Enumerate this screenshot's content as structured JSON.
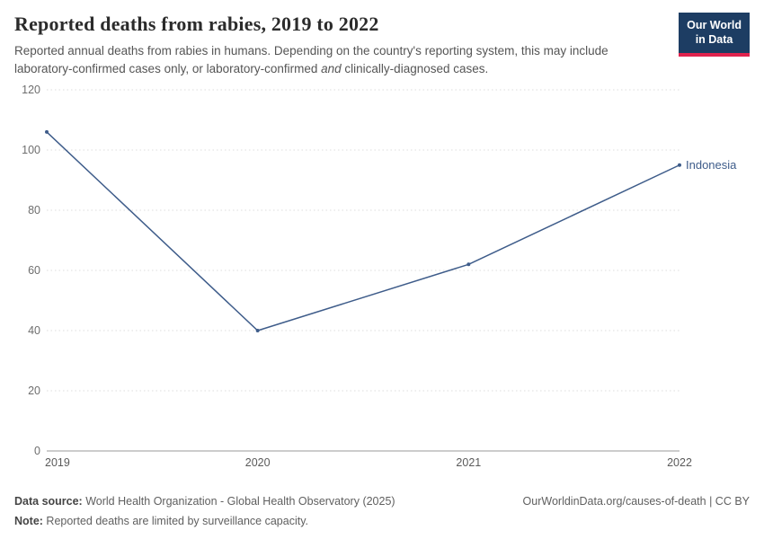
{
  "header": {
    "title": "Reported deaths from rabies, 2019 to 2022",
    "subtitle_part1": "Reported annual deaths from rabies in humans. Depending on the country's reporting system, this may include laboratory-confirmed cases only, or laboratory-confirmed ",
    "subtitle_italic": "and",
    "subtitle_part2": " clinically-diagnosed cases.",
    "logo": {
      "line1": "Our World",
      "line2": "in Data",
      "bg_color": "#1d3d63",
      "accent_color": "#e0234e"
    }
  },
  "chart_data": {
    "type": "line",
    "title": "Reported deaths from rabies, 2019 to 2022",
    "x": [
      2019,
      2020,
      2021,
      2022
    ],
    "series": [
      {
        "name": "Indonesia",
        "values": [
          106,
          40,
          62,
          95
        ],
        "color": "#3e5c8a"
      }
    ],
    "xlabel": "",
    "ylabel": "",
    "ylim": [
      0,
      120
    ],
    "yticks": [
      0,
      20,
      40,
      60,
      80,
      100,
      120
    ],
    "xticks": [
      2019,
      2020,
      2021,
      2022
    ],
    "grid": "horizontal-dotted",
    "legend": "end-of-line-label"
  },
  "footer": {
    "datasource_label": "Data source:",
    "datasource_text": " World Health Organization - Global Health Observatory (2025)",
    "note_label": "Note:",
    "note_text": " Reported deaths are limited by surveillance capacity.",
    "link": "OurWorldinData.org/causes-of-death",
    "license": " | CC BY"
  }
}
